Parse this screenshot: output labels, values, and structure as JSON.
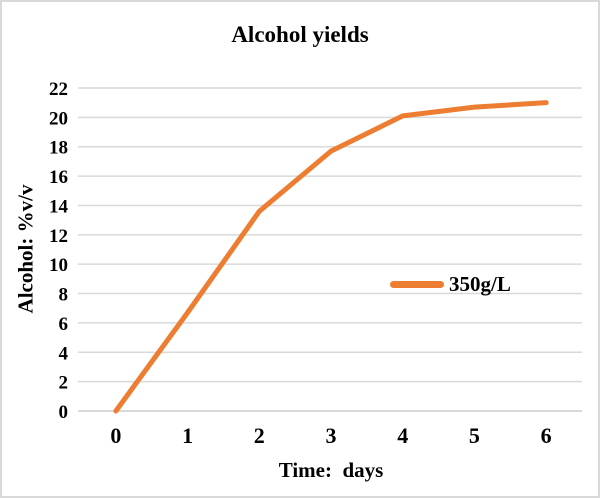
{
  "colors": {
    "line": "#ED7D31",
    "grid": "#D9D9D9",
    "axis": "#C9C9C9",
    "frame_border": "#D9D9D9",
    "text": "#000000",
    "background": "#FFFFFF"
  },
  "chart_data": {
    "type": "line",
    "title": "Alcohol yields",
    "xlabel": "Time:  days",
    "ylabel": "Alcohol: %v/v",
    "categories": [
      "0",
      "1",
      "2",
      "3",
      "4",
      "5",
      "6"
    ],
    "series": [
      {
        "name": "350g/L",
        "color": "#ED7D31",
        "values": [
          0,
          6.7,
          13.6,
          17.7,
          20.1,
          20.7,
          21.0
        ]
      }
    ],
    "ylim": [
      0,
      22
    ],
    "ytick_step": 2,
    "grid": "horizontal-only",
    "grid_color": "#D9D9D9",
    "legend_position": "center-right-inside-plot"
  }
}
